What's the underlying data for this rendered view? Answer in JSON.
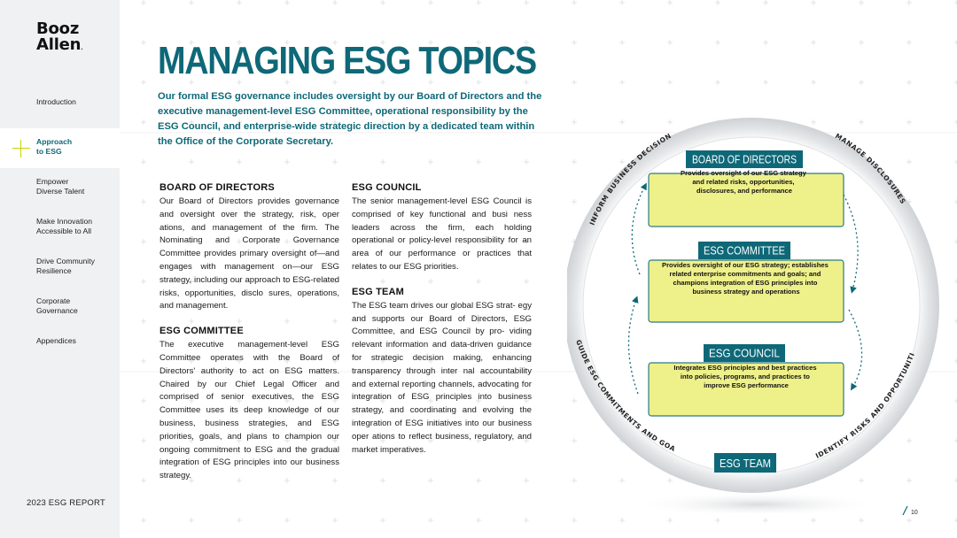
{
  "sidebar": {
    "logo_line1": "Booz",
    "logo_line2": "Allen",
    "logo_mark": ".",
    "nav": [
      {
        "label": "Introduction",
        "active": false
      },
      {
        "label": "Approach to ESG",
        "active": true
      },
      {
        "label": "Empower Diverse Talent",
        "active": false
      },
      {
        "label": "Make Innovation Accessible to All",
        "active": false
      },
      {
        "label": "Drive Community Resilience",
        "active": false
      },
      {
        "label": "Corporate Governance",
        "active": false
      },
      {
        "label": "Appendices",
        "active": false
      }
    ],
    "report_label": "2023 ESG REPORT"
  },
  "page": {
    "title": "MANAGING ESG TOPICS",
    "intro": "Our formal ESG governance includes oversight by our Board of Directors and the executive management-level ESG Committee, operational responsibility by the ESG Council, and enterprise-wide strategic direction by a dedicated team  within the  Office  of  the  Corporate Secretary.",
    "page_number": "10"
  },
  "sections_left": [
    {
      "heading": "BOARD OF DIRECTORS",
      "body": "Our Board of Directors provides governance and oversight over the strategy, risk, oper ations, and management of the firm. The Nominating and Corporate Governance Committee provides primary oversight of—and engages with management on—our ESG strategy, including our approach to ESG-related risks, opportunities, disclo sures, operations, and management."
    },
    {
      "heading": "ESG COMMITTEE",
      "body": "The executive management-level ESG Committee operates with the Board of Directors' authority to act on ESG matters. Chaired by our Chief Legal Officer and comprised of senior executives, the ESG Committee uses its deep knowledge of our business, business strategies, and ESG priorities, goals, and plans to champion our ongoing commitment to ESG and the gradual integration of ESG principles into our business strategy."
    }
  ],
  "sections_right": [
    {
      "heading": "ESG COUNCIL",
      "body": "The senior management-level ESG Council is comprised of key functional and busi ness leaders across the firm, each holding operational or policy-level responsibility for an area of our performance or practices that relates to our ESG priorities."
    },
    {
      "heading": "ESG TEAM",
      "body": "The ESG team drives our global ESG strat- egy and supports our Board of Directors, ESG Committee, and ESG Council by pro- viding relevant information and data-driven guidance for strategic decision making, enhancing transparency through inter nal accountability and external reporting channels, advocating for integration of ESG principles into business strategy, and coordinating and evolving the integration of ESG initiatives into our business oper ations to reflect business, regulatory, and market imperatives."
    }
  ],
  "diagram": {
    "boxes": [
      {
        "label": "BOARD OF DIRECTORS",
        "text_lines": [
          "Provides oversight of our ESG strategy",
          "and related risks, opportunities,",
          "disclosures, and performance"
        ]
      },
      {
        "label": "ESG COMMITTEE",
        "text_lines": [
          "Provides oversight of our ESG strategy; establishes",
          "related enterprise commitments and goals; and",
          "champions integration of ESG principles into",
          "business strategy and operations"
        ]
      },
      {
        "label": "ESG COUNCIL",
        "text_lines": [
          "Integrates ESG principles and best practices",
          "into policies, programs, and practices to",
          "improve ESG performance"
        ]
      }
    ],
    "team_label": "ESG TEAM",
    "arc_labels": {
      "top_left": "INFORM BUSINESS DECISIONS",
      "top_right": "MANAGE DISCLOSURES",
      "bottom_left": "GUIDE ESG COMMITMENTS AND GOALS",
      "bottom_right": "IDENTIFY RISKS AND OPPORTUNITIES"
    },
    "colors": {
      "teal": "#0e6878",
      "box_fill": "#eef08a",
      "box_border": "#2b7a86"
    }
  }
}
